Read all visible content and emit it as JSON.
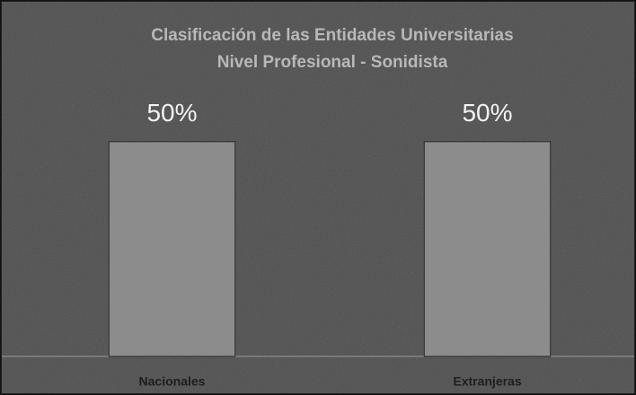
{
  "chart_data": {
    "type": "bar",
    "title": [
      "Clasificación de las Entidades Universitarias",
      "Nivel Profesional - Sonidista"
    ],
    "categories": [
      "Nacionales",
      "Extranjeras"
    ],
    "values": [
      50,
      50
    ],
    "value_labels": [
      "50%",
      "50%"
    ],
    "color": "#8c8c8c",
    "ylim": [
      0,
      60
    ]
  }
}
